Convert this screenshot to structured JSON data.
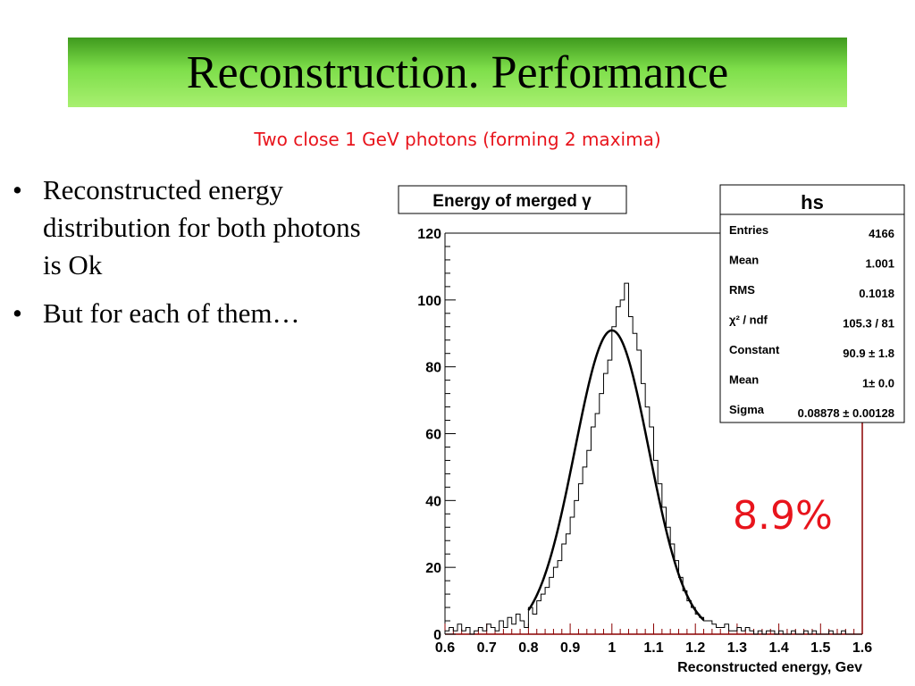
{
  "slide": {
    "title": "Reconstruction. Performance",
    "subtitle": "Two close 1 GeV photons (forming 2 maxima)",
    "bullets": [
      "Reconstructed energy distribution for both photons is Ok",
      "But for each of them…"
    ],
    "resolution_label": "8.9%"
  },
  "stats_box": {
    "name": "hs",
    "rows": [
      {
        "label": "Entries",
        "value": "4166"
      },
      {
        "label": "Mean",
        "value": "1.001"
      },
      {
        "label": "RMS",
        "value": "0.1018"
      },
      {
        "label": "χ² / ndf",
        "value": "105.3 / 81"
      },
      {
        "label": "Constant",
        "value": "90.9 ± 1.8"
      },
      {
        "label": "Mean",
        "value": "1± 0.0"
      },
      {
        "label": "Sigma",
        "value": "0.08878 ± 0.00128"
      }
    ]
  },
  "colors": {
    "accent_red": "#e8141c",
    "title_green": "#7ede4a",
    "frame_right": "#8b0000"
  },
  "chart_data": {
    "type": "histogram",
    "title": "Energy of merged γ",
    "xlabel": "Reconstructed energy, Gev",
    "ylabel": "",
    "xlim": [
      0.6,
      1.6
    ],
    "ylim": [
      0,
      120
    ],
    "x_ticks": [
      "0.6",
      "0.7",
      "0.8",
      "0.9",
      "1",
      "1.1",
      "1.2",
      "1.3",
      "1.4",
      "1.5",
      "1.6"
    ],
    "y_ticks": [
      "0",
      "20",
      "40",
      "60",
      "80",
      "100",
      "120"
    ],
    "bin_width": 0.01,
    "x": [
      0.605,
      0.615,
      0.625,
      0.635,
      0.645,
      0.655,
      0.665,
      0.675,
      0.685,
      0.695,
      0.705,
      0.715,
      0.725,
      0.735,
      0.745,
      0.755,
      0.765,
      0.775,
      0.785,
      0.795,
      0.805,
      0.815,
      0.825,
      0.835,
      0.845,
      0.855,
      0.865,
      0.875,
      0.885,
      0.895,
      0.905,
      0.915,
      0.925,
      0.935,
      0.945,
      0.955,
      0.965,
      0.975,
      0.985,
      0.995,
      1.005,
      1.015,
      1.025,
      1.035,
      1.045,
      1.055,
      1.065,
      1.075,
      1.085,
      1.095,
      1.105,
      1.115,
      1.125,
      1.135,
      1.145,
      1.155,
      1.165,
      1.175,
      1.185,
      1.195,
      1.205,
      1.215,
      1.225,
      1.235,
      1.245,
      1.255,
      1.265,
      1.275,
      1.285,
      1.295,
      1.305,
      1.315,
      1.325,
      1.335,
      1.345,
      1.355,
      1.365,
      1.375,
      1.385,
      1.395,
      1.405,
      1.415,
      1.425,
      1.435,
      1.445,
      1.455,
      1.465,
      1.475,
      1.485,
      1.495,
      1.505,
      1.515,
      1.525,
      1.535,
      1.545,
      1.555,
      1.565,
      1.575,
      1.585,
      1.595
    ],
    "values": [
      1,
      2,
      1,
      3,
      1,
      2,
      0,
      1,
      2,
      1,
      3,
      2,
      1,
      4,
      2,
      5,
      3,
      6,
      4,
      2,
      8,
      6,
      10,
      12,
      14,
      17,
      20,
      22,
      27,
      30,
      35,
      40,
      45,
      50,
      55,
      62,
      66,
      72,
      78,
      82,
      92,
      98,
      100,
      105,
      95,
      90,
      85,
      75,
      68,
      62,
      52,
      45,
      38,
      32,
      27,
      22,
      17,
      13,
      10,
      8,
      6,
      5,
      4,
      4,
      3,
      2,
      2,
      3,
      1,
      1,
      2,
      1,
      2,
      1,
      0,
      1,
      0,
      1,
      1,
      0,
      1,
      0,
      0,
      1,
      0,
      0,
      1,
      0,
      1,
      0,
      0,
      0,
      1,
      0,
      0,
      1,
      0,
      0,
      0,
      0
    ],
    "series": [
      {
        "name": "",
        "kind": "histogram"
      },
      {
        "name": "",
        "kind": "gaussian_fit",
        "constant": 90.9,
        "mean": 1.0,
        "sigma": 0.08878,
        "range": [
          0.8,
          1.22
        ]
      }
    ],
    "stats_box_placement": "top-right"
  }
}
